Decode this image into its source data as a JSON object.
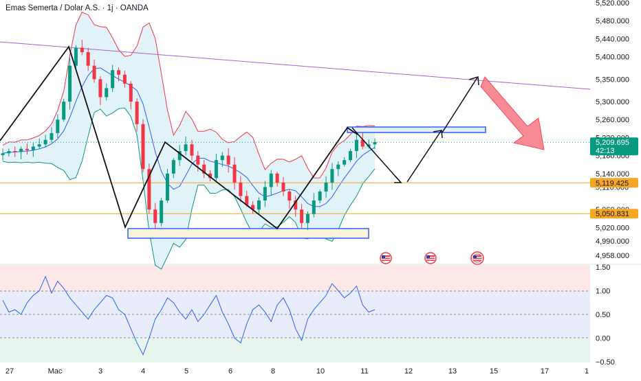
{
  "header": {
    "title": "Emas Semerta / Dolar A.S. · 1j · OANDA"
  },
  "price_axis": {
    "ticks": [
      "5,520.000",
      "5,480.000",
      "5,440.000",
      "5,400.000",
      "5,350.000",
      "5,300.000",
      "5,260.000",
      "5,220.000",
      "5,180.000",
      "5,140.000",
      "5,110.000",
      "5,060.000",
      "5,020.000",
      "4,990.000",
      "4,958.000"
    ],
    "tick_values": [
      5520,
      5480,
      5440,
      5400,
      5350,
      5300,
      5260,
      5220,
      5180,
      5140,
      5110,
      5060,
      5020,
      4990,
      4958
    ]
  },
  "current_price": {
    "value": "5,209.695",
    "countdown": "42:13",
    "color": "#089981"
  },
  "levels": [
    {
      "value": "5,119.425",
      "color": "#f5a623"
    },
    {
      "value": "5,050.831",
      "color": "#f5a623"
    }
  ],
  "oscillator_axis": {
    "ticks": [
      "1.50",
      "1.00",
      "0.50",
      "0.00",
      "−0.50"
    ],
    "tick_values": [
      1.5,
      1.0,
      0.5,
      0.0,
      -0.5
    ]
  },
  "time_axis": {
    "labels": [
      "27",
      "Mac",
      "3",
      "4",
      "5",
      "6",
      "8",
      "10",
      "11",
      "12",
      "13",
      "15",
      "17",
      "1"
    ]
  },
  "colors": {
    "up": "#089981",
    "down": "#f23645",
    "bb_upper": "#f23645",
    "bb_basis": "#2962ff",
    "bb_lower": "#089981",
    "trendline": "#b05ed0",
    "zigzag": "#000000",
    "osc": "#2962ff"
  },
  "icons": [
    "us-flag-icon",
    "us-flag-icon",
    "us-flag-icon"
  ],
  "chart_data": {
    "type": "candlestick",
    "symbol": "XAUUSD",
    "timeframe": "1j",
    "ylim": [
      4940,
      5530
    ],
    "close_path": [
      5185,
      5190,
      5188,
      5195,
      5192,
      5200,
      5205,
      5215,
      5230,
      5260,
      5300,
      5380,
      5420,
      5410,
      5380,
      5350,
      5310,
      5330,
      5370,
      5360,
      5340,
      5300,
      5250,
      5150,
      5060,
      5030,
      5080,
      5140,
      5170,
      5190,
      5205,
      5180,
      5160,
      5140,
      5130,
      5170,
      5180,
      5160,
      5120,
      5090,
      5070,
      5060,
      5080,
      5110,
      5140,
      5120,
      5100,
      5080,
      5060,
      5030,
      5050,
      5080,
      5100,
      5120,
      5150,
      5160,
      5170,
      5190,
      5215,
      5200,
      5205,
      5210
    ],
    "support_zone": [
      5020,
      5035
    ],
    "resistance_zone": [
      5220,
      5230
    ],
    "projection": [
      5215,
      5120,
      5230,
      5350
    ],
    "oscillator": [
      0.8,
      0.55,
      0.6,
      0.5,
      0.75,
      0.9,
      1.0,
      1.3,
      0.95,
      1.2,
      1.05,
      0.85,
      0.7,
      0.55,
      0.4,
      0.6,
      0.75,
      0.9,
      0.85,
      0.6,
      0.5,
      0.2,
      -0.1,
      -0.35,
      0.0,
      0.4,
      0.6,
      0.85,
      0.75,
      0.55,
      0.4,
      0.6,
      0.35,
      0.5,
      0.7,
      0.9,
      0.55,
      0.3,
      0.0,
      -0.1,
      0.3,
      0.6,
      0.7,
      0.55,
      0.35,
      0.7,
      0.85,
      0.6,
      0.2,
      -0.05,
      0.4,
      0.6,
      0.75,
      0.9,
      1.15,
      1.0,
      0.85,
      0.95,
      1.1,
      0.7,
      0.55,
      0.6
    ]
  }
}
